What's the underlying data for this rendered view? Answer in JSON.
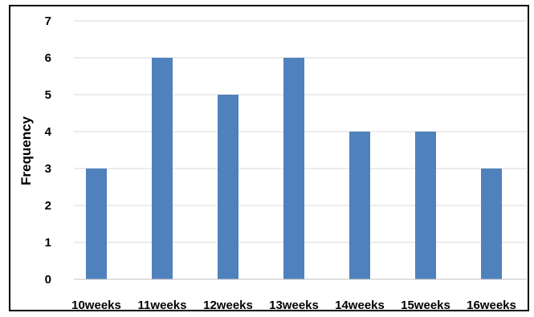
{
  "chart_data": {
    "type": "bar",
    "categories": [
      "10weeks",
      "11weeks",
      "12weeks",
      "13weeks",
      "14weeks",
      "15weeks",
      "16weeks"
    ],
    "values": [
      3,
      6,
      5,
      6,
      4,
      4,
      3
    ],
    "title": "",
    "xlabel": "",
    "ylabel": "Frequency",
    "ylim": [
      0,
      7
    ],
    "yticks": [
      0,
      1,
      2,
      3,
      4,
      5,
      6,
      7
    ],
    "grid": true,
    "legend": "none",
    "bar_color": "#4f81bd",
    "grid_color": "#d9d9d9",
    "border_color": "#000000"
  }
}
